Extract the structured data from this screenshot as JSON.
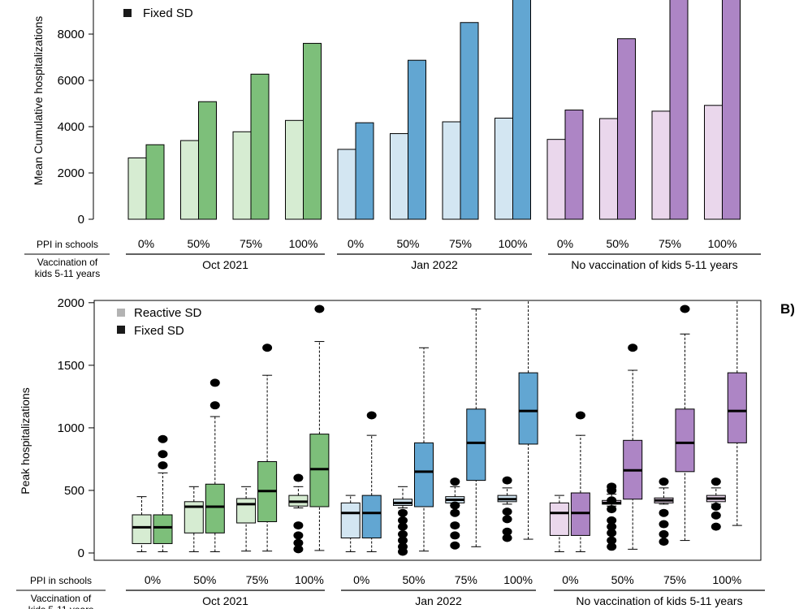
{
  "figure": {
    "panel_b_label": "B)",
    "row_labels": {
      "ppi": "PPI in schools",
      "vacc_line1": "Vaccination of",
      "vacc_line2": "kids 5-11 years"
    },
    "ppi_levels": [
      "0%",
      "50%",
      "75%",
      "100%"
    ],
    "groups": [
      "Oct 2021",
      "Jan 2022",
      "No vaccination of kids 5-11 years"
    ],
    "colors": {
      "reactive": [
        "#d6ecd2",
        "#d3e6f2",
        "#ead7ec"
      ],
      "fixed": [
        "#7dbf7a",
        "#62a6d2",
        "#ad85c5"
      ],
      "legend_reactive": "#b3b3b3",
      "legend_fixed": "#1a1a1a"
    }
  },
  "chart_data": [
    {
      "type": "bar",
      "panel": "A",
      "title": "",
      "ylabel": "Mean Cumulative hospitalizations",
      "xlabel": "",
      "ylim": [
        0,
        9600
      ],
      "yticks": [
        0,
        2000,
        4000,
        6000,
        8000
      ],
      "legend": [
        "Fixed SD"
      ],
      "categories": [
        "0%",
        "50%",
        "75%",
        "100%",
        "0%",
        "50%",
        "75%",
        "100%",
        "0%",
        "50%",
        "75%",
        "100%"
      ],
      "series": [
        {
          "name": "Reactive SD",
          "values": [
            2650,
            3400,
            3780,
            4270,
            3020,
            3700,
            4210,
            4370,
            3450,
            4350,
            4670,
            4920
          ]
        },
        {
          "name": "Fixed SD",
          "values": [
            3220,
            5080,
            6270,
            7600,
            4170,
            6870,
            8500,
            9600,
            4720,
            7800,
            9600,
            9600
          ]
        }
      ]
    },
    {
      "type": "box",
      "panel": "B",
      "title": "",
      "ylabel": "Peak hospitalizations",
      "xlabel": "",
      "ylim": [
        0,
        2000
      ],
      "yticks": [
        0,
        500,
        1000,
        1500,
        2000
      ],
      "legend": [
        "Reactive SD",
        "Fixed SD"
      ],
      "categories": [
        "0%",
        "50%",
        "75%",
        "100%",
        "0%",
        "50%",
        "75%",
        "100%",
        "0%",
        "50%",
        "75%",
        "100%"
      ],
      "series": [
        {
          "name": "Reactive SD",
          "boxes": [
            {
              "lo": 10,
              "q1": 75,
              "med": 205,
              "q3": 305,
              "hi": 450,
              "out": []
            },
            {
              "lo": 10,
              "q1": 160,
              "med": 370,
              "q3": 410,
              "hi": 530,
              "out": []
            },
            {
              "lo": 15,
              "q1": 240,
              "med": 390,
              "q3": 435,
              "hi": 530,
              "out": []
            },
            {
              "lo": 360,
              "q1": 375,
              "med": 410,
              "q3": 460,
              "hi": 530,
              "out": [
                30,
                80,
                140,
                220,
                600
              ]
            },
            {
              "lo": 10,
              "q1": 120,
              "med": 320,
              "q3": 400,
              "hi": 460,
              "out": []
            },
            {
              "lo": 360,
              "q1": 380,
              "med": 400,
              "q3": 430,
              "hi": 530,
              "out": [
                10,
                50,
                100,
                150,
                210,
                260,
                320
              ]
            },
            {
              "lo": 380,
              "q1": 400,
              "med": 425,
              "q3": 450,
              "hi": 530,
              "out": [
                60,
                140,
                220,
                320,
                380,
                570
              ]
            },
            {
              "lo": 390,
              "q1": 410,
              "med": 430,
              "q3": 460,
              "hi": 520,
              "out": [
                120,
                170,
                270,
                330,
                580
              ]
            },
            {
              "lo": 10,
              "q1": 140,
              "med": 320,
              "q3": 400,
              "hi": 460,
              "out": []
            },
            {
              "lo": 375,
              "q1": 390,
              "med": 400,
              "q3": 420,
              "hi": 470,
              "out": [
                50,
                100,
                160,
                210,
                260,
                350,
                420,
                500,
                530
              ]
            },
            {
              "lo": 390,
              "q1": 400,
              "med": 420,
              "q3": 440,
              "hi": 520,
              "out": [
                90,
                150,
                230,
                320,
                570
              ]
            },
            {
              "lo": 390,
              "q1": 410,
              "med": 435,
              "q3": 460,
              "hi": 520,
              "out": [
                210,
                300,
                370,
                570
              ]
            }
          ]
        },
        {
          "name": "Fixed SD",
          "boxes": [
            {
              "lo": 10,
              "q1": 75,
              "med": 205,
              "q3": 305,
              "hi": 640,
              "out": [
                700,
                790,
                910
              ]
            },
            {
              "lo": 10,
              "q1": 160,
              "med": 370,
              "q3": 550,
              "hi": 1090,
              "out": [
                1180,
                1360
              ]
            },
            {
              "lo": 15,
              "q1": 250,
              "med": 495,
              "q3": 730,
              "hi": 1420,
              "out": [
                1640
              ]
            },
            {
              "lo": 20,
              "q1": 370,
              "med": 670,
              "q3": 950,
              "hi": 1690,
              "out": [
                1950
              ]
            },
            {
              "lo": 10,
              "q1": 120,
              "med": 320,
              "q3": 460,
              "hi": 940,
              "out": [
                1100
              ]
            },
            {
              "lo": 15,
              "q1": 370,
              "med": 650,
              "q3": 880,
              "hi": 1640,
              "out": []
            },
            {
              "lo": 50,
              "q1": 580,
              "med": 880,
              "q3": 1150,
              "hi": 1950,
              "out": []
            },
            {
              "lo": 110,
              "q1": 870,
              "med": 1135,
              "q3": 1440,
              "hi": 2000,
              "out": []
            },
            {
              "lo": 10,
              "q1": 140,
              "med": 320,
              "q3": 480,
              "hi": 940,
              "out": [
                1100
              ]
            },
            {
              "lo": 30,
              "q1": 430,
              "med": 660,
              "q3": 900,
              "hi": 1460,
              "out": [
                1640
              ]
            },
            {
              "lo": 100,
              "q1": 650,
              "med": 880,
              "q3": 1150,
              "hi": 1750,
              "out": [
                1950
              ]
            },
            {
              "lo": 220,
              "q1": 880,
              "med": 1135,
              "q3": 1440,
              "hi": 2000,
              "out": []
            }
          ]
        }
      ]
    }
  ]
}
